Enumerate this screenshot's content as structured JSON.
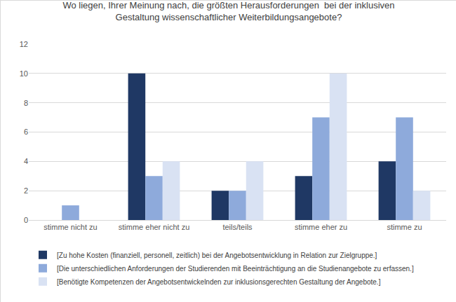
{
  "chart_data": {
    "type": "bar",
    "title": "Wo liegen, Ihrer Meinung nach, die größten Herausforderungen  bei der inklusiven\nGestaltung wissenschaftlicher Weiterbildungsangebote?",
    "categories": [
      "stimme nicht zu",
      "stimme eher nicht zu",
      "teils/teils",
      "stimme eher zu",
      "stimme zu"
    ],
    "series": [
      {
        "name": "[Zu hohe Kosten (finanziell, personell, zeitlich) bei der Angebotsentwicklung in Relation zur Zielgruppe.]",
        "color": "#1f3864",
        "values": [
          0,
          10,
          2,
          3,
          4
        ]
      },
      {
        "name": "[Die unterschiedlichen Anforderungen der Studierenden mit Beeinträchtigung an die Studienangebote zu erfassen.]",
        "color": "#8eaadb",
        "values": [
          1,
          3,
          2,
          7,
          7
        ]
      },
      {
        "name": "[Benötigte Kompetenzen der Angebotsentwickelnden zur inklusionsgerechten Gestaltung der Angebote.]",
        "color": "#d9e2f3",
        "values": [
          0,
          4,
          4,
          10,
          2
        ]
      }
    ],
    "ylim": [
      0,
      12
    ],
    "yticks": [
      0,
      2,
      4,
      6,
      8,
      10,
      12
    ],
    "grid": true,
    "legend": "bottom"
  }
}
